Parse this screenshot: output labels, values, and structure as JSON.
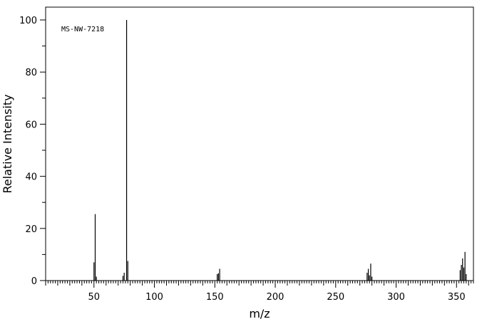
{
  "chart_data": {
    "type": "bar",
    "annotation": "MS-NW-7218",
    "xlabel": "m/z",
    "ylabel": "Relative Intensity",
    "xlim": [
      10,
      364
    ],
    "ylim": [
      0,
      100
    ],
    "x_ticks": [
      50,
      100,
      150,
      200,
      250,
      300,
      350
    ],
    "y_ticks": [
      0,
      20,
      40,
      60,
      80,
      100
    ],
    "grid": false,
    "legend": "none",
    "colors": {
      "bars": "#000000",
      "axes": "#000000",
      "background": "#ffffff"
    },
    "peaks": [
      {
        "mz": 50,
        "intensity": 7.0
      },
      {
        "mz": 51,
        "intensity": 25.5
      },
      {
        "mz": 52,
        "intensity": 1.5
      },
      {
        "mz": 74,
        "intensity": 1.8
      },
      {
        "mz": 75,
        "intensity": 3.0
      },
      {
        "mz": 77,
        "intensity": 100
      },
      {
        "mz": 78,
        "intensity": 7.5
      },
      {
        "mz": 152,
        "intensity": 2.5
      },
      {
        "mz": 153,
        "intensity": 2.8
      },
      {
        "mz": 154,
        "intensity": 4.5
      },
      {
        "mz": 276,
        "intensity": 3.0
      },
      {
        "mz": 277,
        "intensity": 4.5
      },
      {
        "mz": 278,
        "intensity": 2.0
      },
      {
        "mz": 279,
        "intensity": 6.5
      },
      {
        "mz": 280,
        "intensity": 1.5
      },
      {
        "mz": 353,
        "intensity": 4.0
      },
      {
        "mz": 354,
        "intensity": 6.0
      },
      {
        "mz": 355,
        "intensity": 8.5
      },
      {
        "mz": 356,
        "intensity": 5.0
      },
      {
        "mz": 357,
        "intensity": 11.0
      },
      {
        "mz": 358,
        "intensity": 2.5
      }
    ]
  }
}
